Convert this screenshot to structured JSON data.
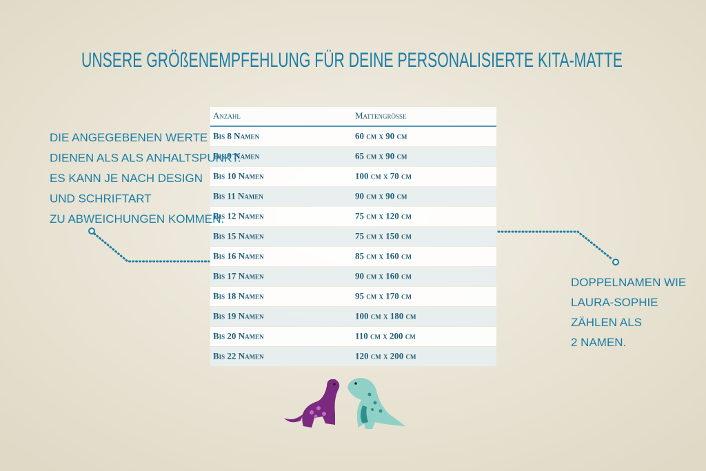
{
  "title": "UNSERE GRÖßENEMPFEHLUNG FÜR DEINE PERSONALISIERTE KITA-MATTE",
  "left_note": [
    "DIE ANGEGEBENEN WERTE",
    "DIENEN ALS ALS ANHALTSPUNKT.",
    "ES KANN JE NACH DESIGN",
    "UND SCHRIFTART",
    "ZU ABWEICHUNGEN KOMMEN."
  ],
  "right_note": [
    "DOPPELNAMEN WIE",
    "LAURA-SOPHIE",
    "ZÄHLEN ALS",
    "2 NAMEN."
  ],
  "table": {
    "header": [
      "Anzahl",
      "Mattengröße"
    ],
    "rows": [
      [
        "Bis 8 Namen",
        "60 cm x 90 cm"
      ],
      [
        "Bis 9 Namen",
        "65 cm x 90 cm"
      ],
      [
        "Bis 10 Namen",
        "100 cm x 70 cm"
      ],
      [
        "Bis 11 Namen",
        "90 cm x 90 cm"
      ],
      [
        "Bis 12 Namen",
        "75 cm x 120 cm"
      ],
      [
        "Bis 15 Namen",
        "75 cm x 150 cm"
      ],
      [
        "Bis 16 Namen",
        "85 cm x 160 cm"
      ],
      [
        "Bis 17 Namen",
        "90 cm x 160 cm"
      ],
      [
        "Bis 18 Namen",
        "95 cm x 170 cm"
      ],
      [
        "Bis 19 Namen",
        "100 cm x 180 cm"
      ],
      [
        "Bis 20 Namen",
        "110 cm x 200 cm"
      ],
      [
        "Bis 22 Namen",
        "120 cm x 200 cm"
      ]
    ]
  }
}
